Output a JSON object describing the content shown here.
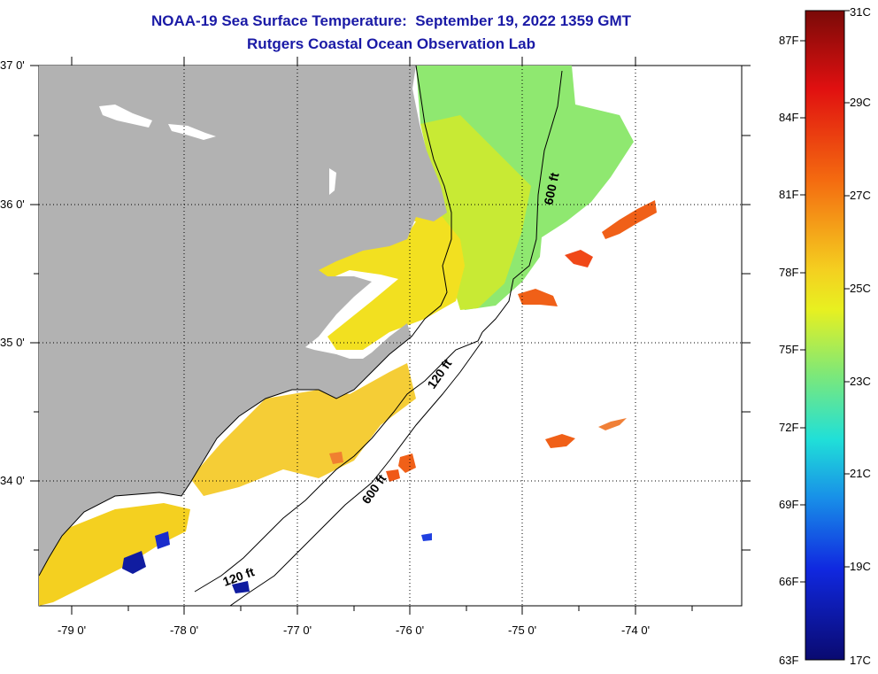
{
  "title": {
    "line1": "NOAA-19 Sea Surface Temperature:  September 19, 2022 1359 GMT",
    "line2": "Rutgers Coastal Ocean Observation Lab"
  },
  "axes": {
    "lon_labels": [
      "-79 0'",
      "-78 0'",
      "-77 0'",
      "-76 0'",
      "-75 0'",
      "-74 0'"
    ],
    "lat_labels": [
      "37 0'",
      "36 0'",
      "35 0'",
      "34 0'"
    ]
  },
  "isobaths": [
    "600 ft",
    "120 ft",
    "600 ft",
    "120 ft"
  ],
  "colorbar": {
    "fahrenheit": [
      "87F",
      "84F",
      "81F",
      "78F",
      "75F",
      "72F",
      "69F",
      "66F",
      "63F"
    ],
    "celsius": [
      "31C",
      "29C",
      "27C",
      "25C",
      "23C",
      "21C",
      "19C",
      "17C"
    ]
  },
  "colors": {
    "land": "#b2b2b2",
    "title": "#1a1aa6",
    "warm_water": "#f2e020",
    "shelf_water": "#c8ea34",
    "offshore_water": "#8fe870",
    "hot_patch": "#f06018",
    "cold_patch": "#101ca0"
  }
}
